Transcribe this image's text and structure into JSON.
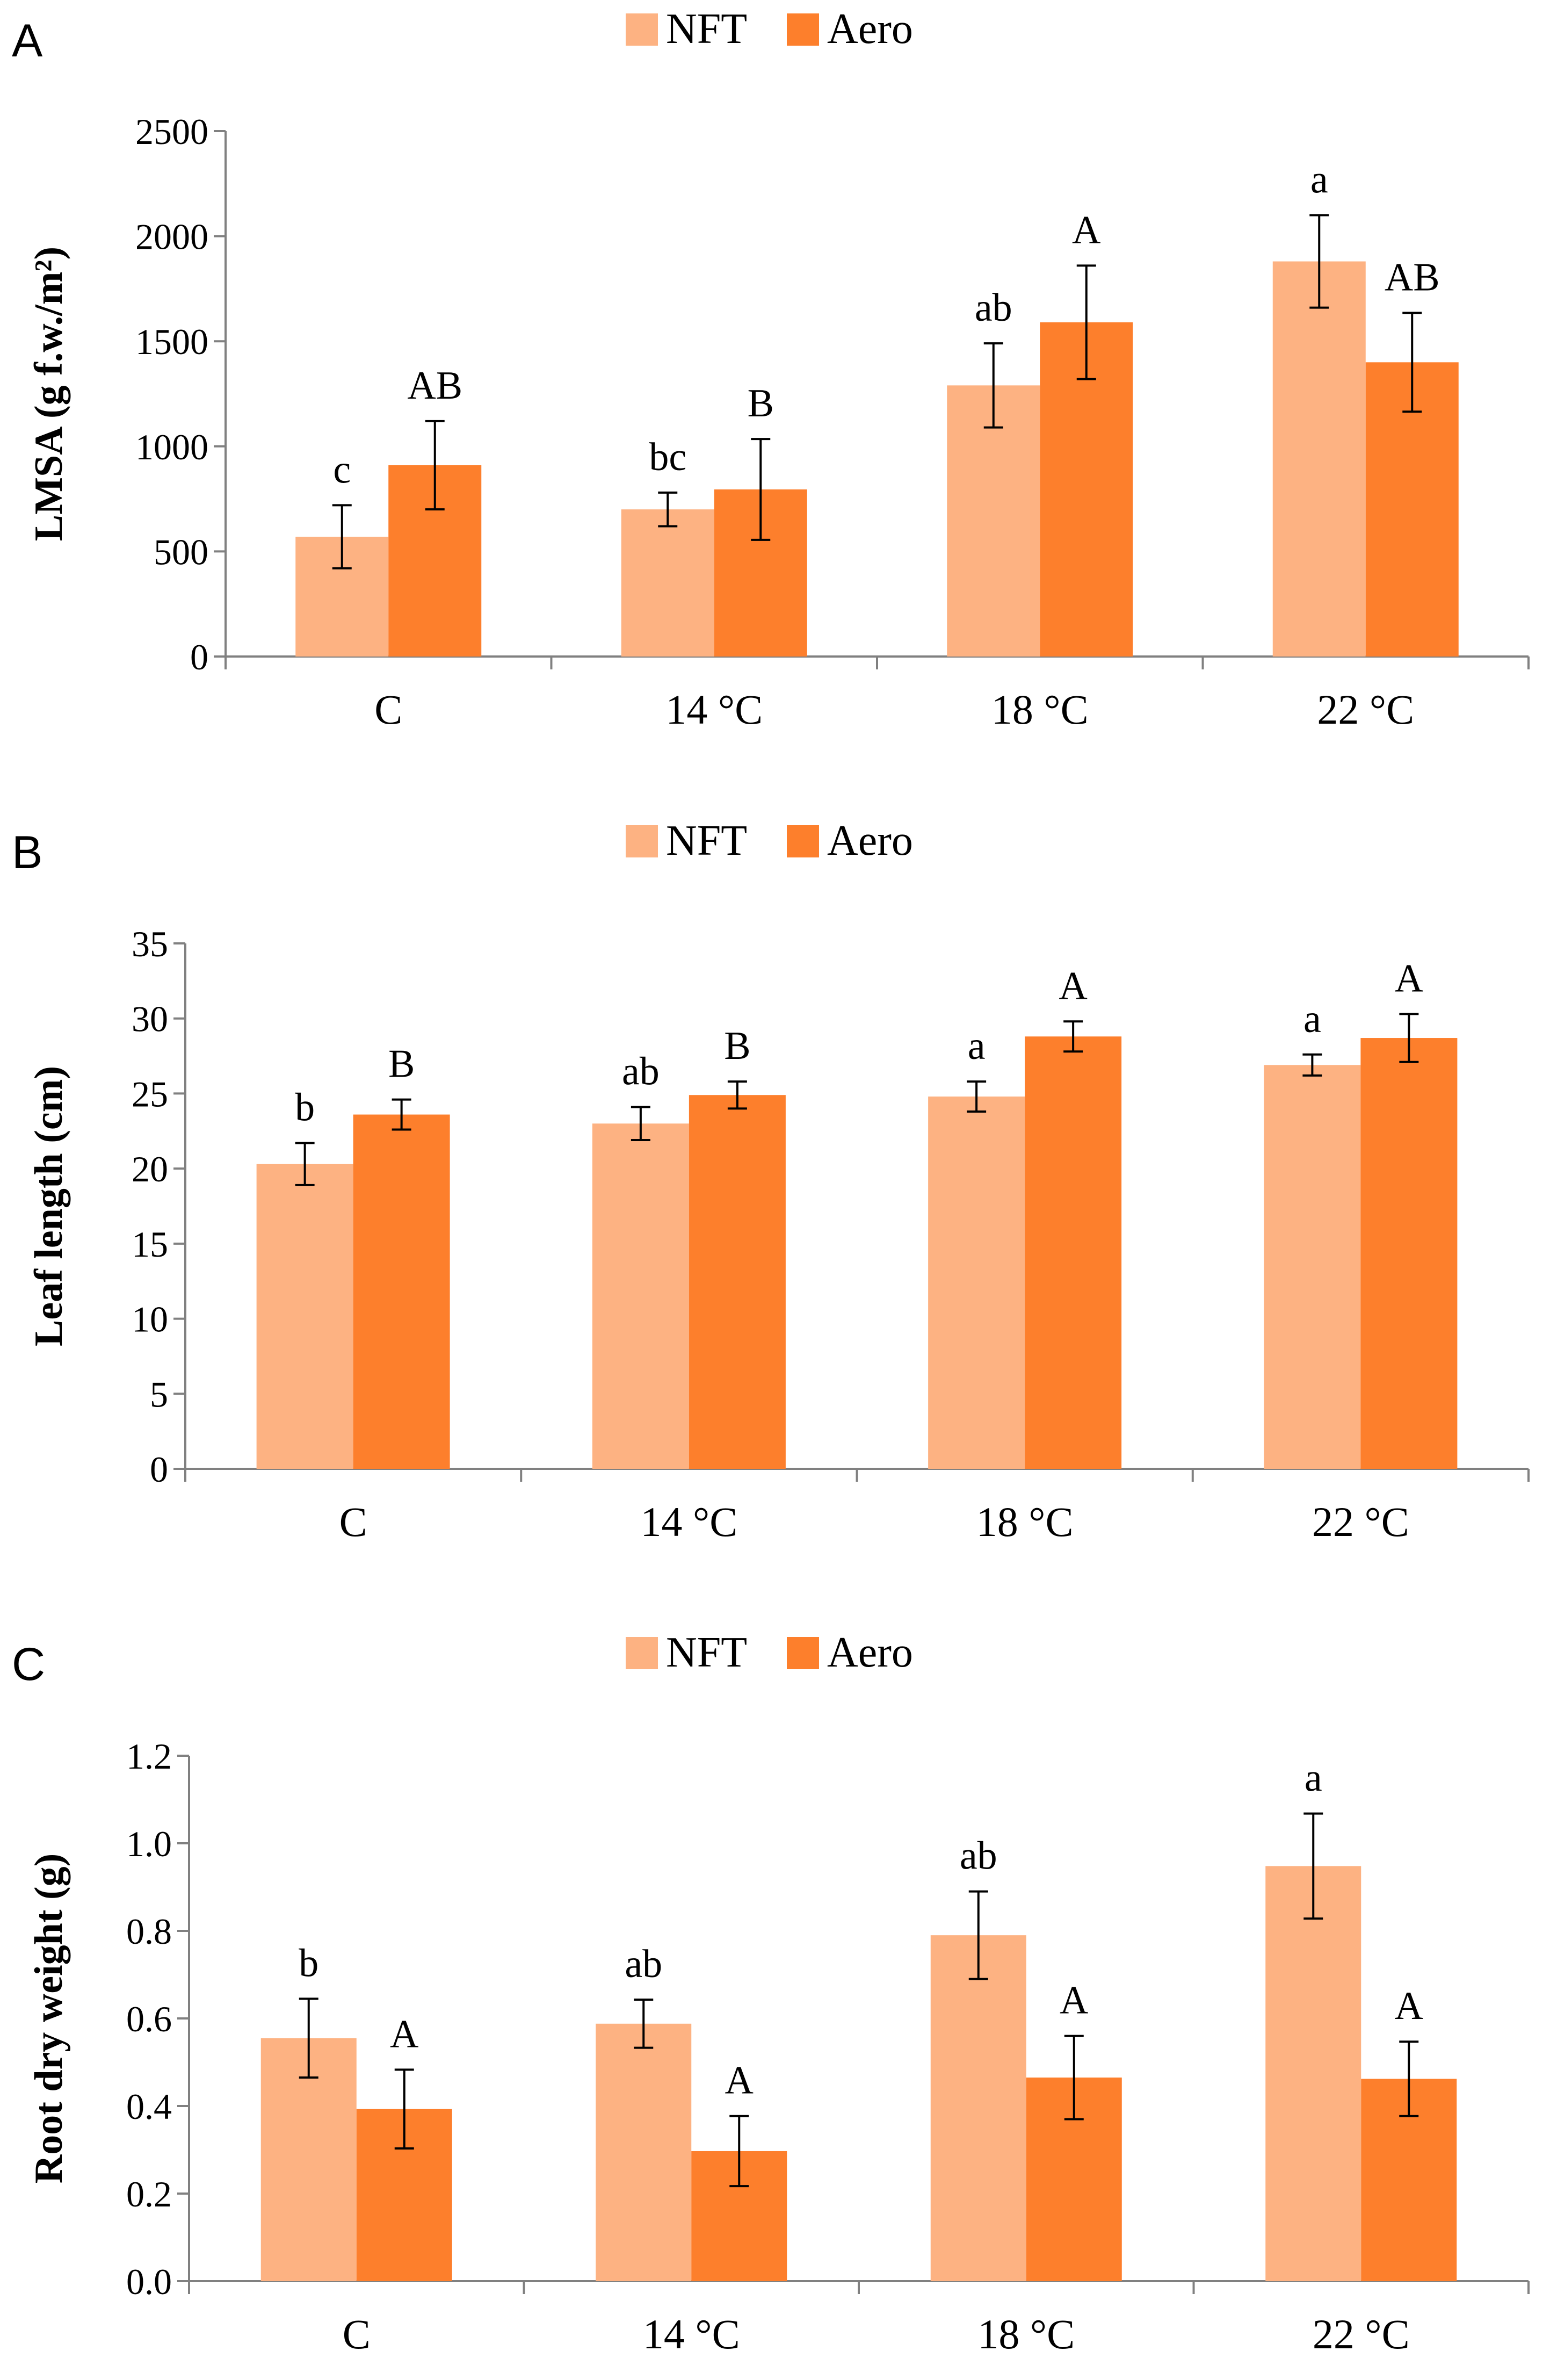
{
  "colors": {
    "NFT": "#FDB282",
    "Aero": "#FD7F2C"
  },
  "legend": [
    "NFT",
    "Aero"
  ],
  "chart_data": [
    {
      "panel": "A",
      "type": "bar",
      "categories": [
        "C",
        "14 °C",
        "18 °C",
        "22 °C"
      ],
      "ylabel": "LMSA (g f.w./m²)",
      "ylim": [
        0,
        2500
      ],
      "yticks": [
        "0",
        "500",
        "1000",
        "1500",
        "2000",
        "2500"
      ],
      "series": [
        {
          "name": "NFT",
          "values": [
            570,
            700,
            1290,
            1880
          ],
          "errors": [
            150,
            80,
            200,
            220
          ],
          "letters": [
            "c",
            "bc",
            "ab",
            "a"
          ]
        },
        {
          "name": "Aero",
          "values": [
            910,
            795,
            1590,
            1400
          ],
          "errors": [
            210,
            240,
            270,
            235
          ],
          "letters": [
            "AB",
            "B",
            "A",
            "AB"
          ]
        }
      ]
    },
    {
      "panel": "B",
      "type": "bar",
      "categories": [
        "C",
        "14 °C",
        "18 °C",
        "22 °C"
      ],
      "ylabel": "Leaf length (cm)",
      "ylim": [
        0,
        35
      ],
      "yticks": [
        "0",
        "5",
        "10",
        "15",
        "20",
        "25",
        "30",
        "35"
      ],
      "series": [
        {
          "name": "NFT",
          "values": [
            20.3,
            23.0,
            24.8,
            26.9
          ],
          "errors": [
            1.4,
            1.1,
            1.0,
            0.7
          ],
          "letters": [
            "b",
            "ab",
            "a",
            "a"
          ]
        },
        {
          "name": "Aero",
          "values": [
            23.6,
            24.9,
            28.8,
            28.7
          ],
          "errors": [
            1.0,
            0.9,
            1.0,
            1.6
          ],
          "letters": [
            "B",
            "B",
            "A",
            "A"
          ]
        }
      ]
    },
    {
      "panel": "C",
      "type": "bar",
      "categories": [
        "C",
        "14 °C",
        "18 °C",
        "22 °C"
      ],
      "ylabel": "Root dry weight (g)",
      "ylim": [
        0,
        1.2
      ],
      "yticks": [
        "0.0",
        "0.2",
        "0.4",
        "0.6",
        "0.8",
        "1.0",
        "1.2"
      ],
      "series": [
        {
          "name": "NFT",
          "values": [
            0.555,
            0.588,
            0.79,
            0.948
          ],
          "errors": [
            0.09,
            0.055,
            0.1,
            0.12
          ],
          "letters": [
            "b",
            "ab",
            "ab",
            "a"
          ]
        },
        {
          "name": "Aero",
          "values": [
            0.393,
            0.297,
            0.465,
            0.462
          ],
          "errors": [
            0.09,
            0.08,
            0.095,
            0.085
          ],
          "letters": [
            "A",
            "A",
            "A",
            "A"
          ]
        }
      ]
    }
  ]
}
